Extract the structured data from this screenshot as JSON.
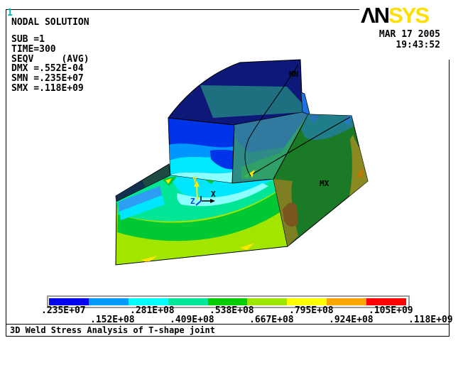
{
  "window": {
    "id_label": "1",
    "caption": "3D Weld Stress Analysis of T-shape joint"
  },
  "info_block": {
    "title": "NODAL SOLUTION",
    "lines": [
      "SUB =1",
      "TIME=300",
      "SEQV     (AVG)",
      "DMX =.552E-04",
      "SMN =.235E+07",
      "SMX =.118E+09"
    ]
  },
  "brand": {
    "logo_black": "ΛN",
    "logo_yellow": "SYS",
    "logo_yellow_color": "#FFDE00",
    "date": "MAR 17 2005",
    "time": "19:43:52"
  },
  "model_labels": {
    "min": "MN",
    "max": "MX",
    "axis_x": "X",
    "axis_y": "Y",
    "axis_z": "Z"
  },
  "legend": {
    "boundaries": [
      ".235E+07",
      ".152E+08",
      ".281E+08",
      ".409E+08",
      ".538E+08",
      ".667E+08",
      ".795E+08",
      ".924E+08",
      ".105E+09",
      ".118E+09"
    ],
    "colors": [
      "#0000EE",
      "#009CFF",
      "#00FFFF",
      "#00E69B",
      "#00CC00",
      "#9CE600",
      "#FFFF00",
      "#FFA500",
      "#FF0000"
    ]
  }
}
